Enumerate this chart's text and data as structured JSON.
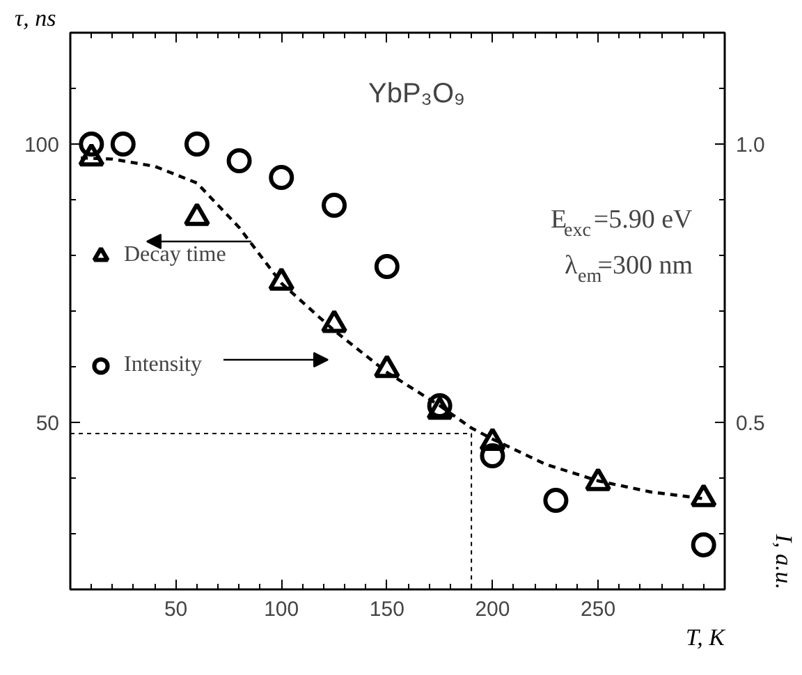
{
  "chart_data": {
    "type": "scatter",
    "xlabel": "T, K",
    "ylabel": "τ, ns",
    "y2label": "I, a.u.",
    "annotations": [
      "YbP₃O₉",
      "E$_{exc}$=5.90 eV",
      "λ$_{em}$=300 nm"
    ],
    "xlim": [
      0,
      310
    ],
    "ylim": [
      20,
      120
    ],
    "y2lim": [
      0.2,
      1.2
    ],
    "xticks": [
      {
        "value": 10,
        "label": null
      },
      {
        "value": 20,
        "label": null
      },
      {
        "value": 30,
        "label": null
      },
      {
        "value": 40,
        "label": null
      },
      50,
      {
        "value": 60,
        "label": null
      },
      {
        "value": 70,
        "label": null
      },
      {
        "value": 80,
        "label": null
      },
      {
        "value": 90,
        "label": null
      },
      100,
      {
        "value": 110,
        "label": null
      },
      {
        "value": 120,
        "label": null
      },
      {
        "value": 130,
        "label": null
      },
      {
        "value": 140,
        "label": null
      },
      150,
      {
        "value": 160,
        "label": null
      },
      {
        "value": 170,
        "label": null
      },
      {
        "value": 180,
        "label": null
      },
      {
        "value": 190,
        "label": null
      },
      200,
      {
        "value": 210,
        "label": null
      },
      {
        "value": 220,
        "label": null
      },
      {
        "value": 230,
        "label": null
      },
      {
        "value": 240,
        "label": null
      },
      250,
      {
        "value": 260,
        "label": null
      },
      {
        "value": 270,
        "label": null
      },
      {
        "value": 280,
        "label": null
      },
      {
        "value": 290,
        "label": null
      },
      {
        "value": 300,
        "label": null
      }
    ],
    "yticks": [
      {
        "value": 30,
        "label": null
      },
      {
        "value": 40,
        "label": null
      },
      50,
      {
        "value": 60,
        "label": null
      },
      {
        "value": 70,
        "label": null
      },
      {
        "value": 80,
        "label": null
      },
      {
        "value": 90,
        "label": null
      },
      100,
      {
        "value": 110,
        "label": null
      }
    ],
    "y2ticks": [
      {
        "value": 0.3,
        "label": null
      },
      {
        "value": 0.4,
        "label": null
      },
      0.5,
      {
        "value": 0.6,
        "label": null
      },
      {
        "value": 0.7,
        "label": null
      },
      {
        "value": 0.8,
        "label": null
      },
      {
        "value": 0.9,
        "label": null
      },
      {
        "value": 1.0,
        "label": "1.0"
      },
      {
        "value": 1.1,
        "label": null
      }
    ],
    "grid": false,
    "legend": "left",
    "series": [
      {
        "name": "Decay time",
        "marker": "triangle",
        "color": "#000000",
        "x": [
          10,
          60,
          100,
          125,
          150,
          175,
          200,
          250,
          300
        ],
        "values": [
          97.5,
          86.8,
          75.2,
          67.6,
          59.5,
          52,
          46.4,
          39.2,
          36.3
        ]
      },
      {
        "name": "Intensity",
        "marker": "circle",
        "axis": "y2",
        "color": "#000000",
        "x": [
          10,
          25,
          60,
          80,
          100,
          125,
          150,
          175,
          200,
          230,
          300
        ],
        "values": [
          1.0,
          1.0,
          1.0,
          0.97,
          0.94,
          0.89,
          0.78,
          0.53,
          0.44,
          0.36,
          0.28
        ]
      },
      {
        "type": "line",
        "line_style": "dashed",
        "color": "#000000",
        "x": [
          5,
          20,
          40,
          60,
          80,
          100,
          125,
          150,
          175,
          190,
          200,
          225,
          250,
          275,
          300
        ],
        "values": [
          97.5,
          97.3,
          96,
          93,
          85,
          75,
          66.5,
          59,
          53,
          49,
          47,
          42.5,
          39.5,
          37.5,
          36.3
        ]
      },
      {
        "type": "line",
        "line_style": "dotted",
        "color": "#000000",
        "x": [
          0,
          190,
          190
        ],
        "values": [
          48,
          48,
          20
        ]
      }
    ]
  }
}
